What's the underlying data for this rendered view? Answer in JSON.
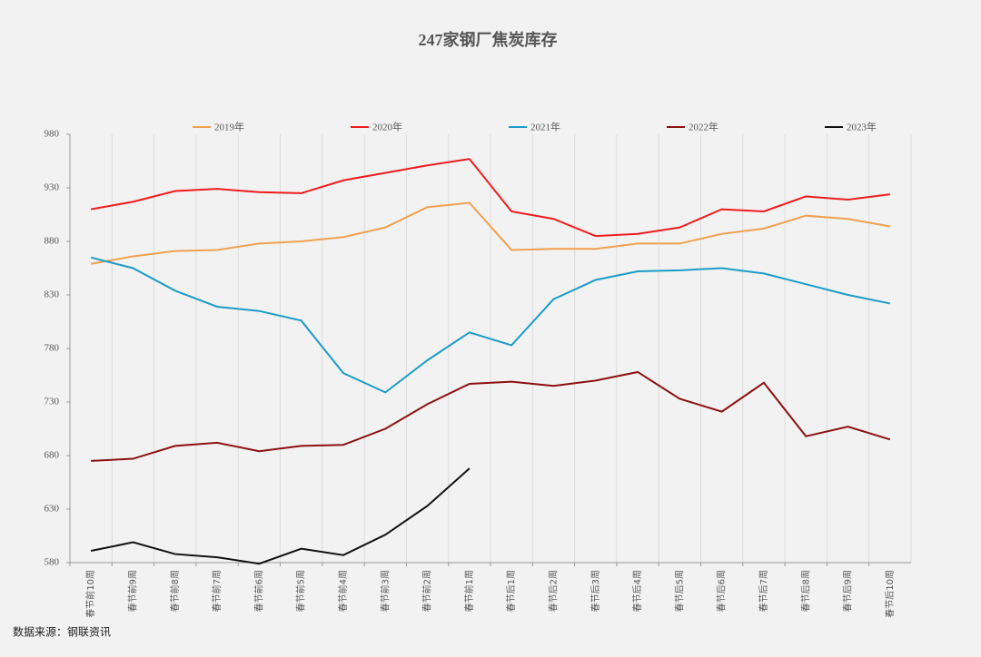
{
  "chart_data": {
    "type": "line",
    "title": "247家钢厂焦炭库存",
    "categories": [
      "春节前10周",
      "春节前9周",
      "春节前8周",
      "春节前7周",
      "春节前6周",
      "春节前5周",
      "春节前4周",
      "春节前3周",
      "春节前2周",
      "春节前1周",
      "春节后1周",
      "春节后2周",
      "春节后3周",
      "春节后4周",
      "春节后5周",
      "春节后6周",
      "春节后7周",
      "春节后8周",
      "春节后9周",
      "春节后10周"
    ],
    "series": [
      {
        "name": "2019年",
        "color": "#f0a050",
        "values": [
          859,
          866,
          871,
          872,
          878,
          880,
          884,
          893,
          912,
          916,
          872,
          873,
          873,
          878,
          878,
          887,
          892,
          904,
          901,
          894
        ]
      },
      {
        "name": "2020年",
        "color": "#f01c1c",
        "values": [
          910,
          917,
          927,
          929,
          926,
          925,
          937,
          944,
          951,
          957,
          908,
          901,
          885,
          887,
          893,
          910,
          908,
          922,
          919,
          924
        ]
      },
      {
        "name": "2021年",
        "color": "#1c9cc8",
        "values": [
          865,
          855,
          834,
          819,
          815,
          806,
          757,
          739,
          769,
          795,
          783,
          826,
          844,
          852,
          853,
          855,
          850,
          840,
          830,
          822
        ]
      },
      {
        "name": "2022年",
        "color": "#8c1010",
        "values": [
          675,
          677,
          689,
          692,
          684,
          689,
          690,
          705,
          728,
          747,
          749,
          745,
          750,
          758,
          733,
          721,
          748,
          698,
          707,
          695
        ]
      },
      {
        "name": "2023年",
        "color": "#101010",
        "values": [
          591,
          599,
          588,
          585,
          579,
          593,
          587,
          606,
          633,
          668,
          null,
          null,
          null,
          null,
          null,
          null,
          null,
          null,
          null,
          null
        ]
      }
    ],
    "ylim": [
      580,
      980
    ],
    "yticks": [
      580,
      630,
      680,
      730,
      780,
      830,
      880,
      930,
      980
    ],
    "grid": true,
    "legend": "top",
    "source": "数据来源：钢联资讯"
  }
}
